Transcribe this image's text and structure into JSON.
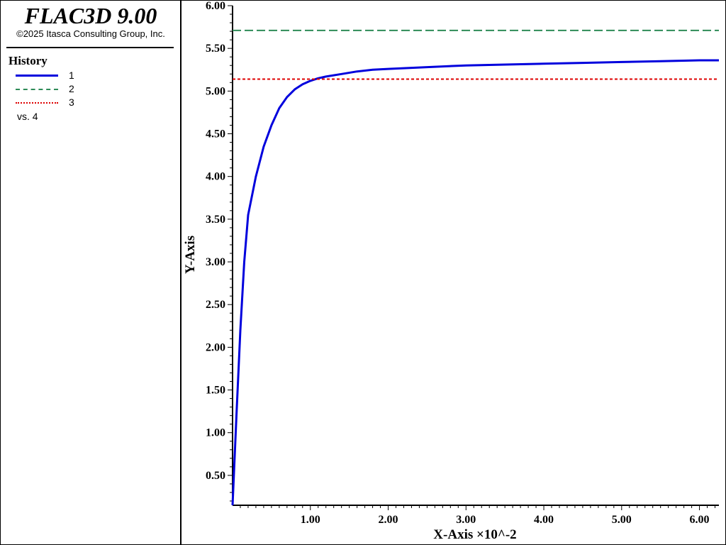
{
  "header": {
    "app_title": "FLAC3D 9.00",
    "copyright": "©2025 Itasca Consulting Group, Inc."
  },
  "legend": {
    "title": "History",
    "items": [
      {
        "label": "1",
        "color": "#0000dd",
        "style": "solid"
      },
      {
        "label": "2",
        "color": "#2e8b57",
        "style": "dashed"
      },
      {
        "label": "3",
        "color": "#dd0000",
        "style": "dotted"
      }
    ],
    "vs_label": "vs. 4"
  },
  "chart_data": {
    "type": "line",
    "xlabel": "X-Axis ×10^-2",
    "ylabel": "Y-Axis",
    "xlim": [
      0.0,
      6.25
    ],
    "ylim": [
      0.15,
      6.0
    ],
    "x_tick_values": [
      1.0,
      2.0,
      3.0,
      4.0,
      5.0,
      6.0
    ],
    "x_tick_labels": [
      "1.00",
      "2.00",
      "3.00",
      "4.00",
      "5.00",
      "6.00"
    ],
    "y_tick_values": [
      0.5,
      1.0,
      1.5,
      2.0,
      2.5,
      3.0,
      3.5,
      4.0,
      4.5,
      5.0,
      5.5,
      6.0
    ],
    "y_tick_labels": [
      "0.50",
      "1.00",
      "1.50",
      "2.00",
      "2.50",
      "3.00",
      "3.50",
      "4.00",
      "4.50",
      "5.00",
      "5.50",
      "6.00"
    ],
    "grid": false,
    "legend_placement": "left-panel",
    "series": [
      {
        "name": "1",
        "color": "#0000dd",
        "style": "solid",
        "x": [
          0.0,
          0.05,
          0.1,
          0.15,
          0.2,
          0.3,
          0.4,
          0.5,
          0.6,
          0.7,
          0.8,
          0.9,
          1.0,
          1.1,
          1.2,
          1.4,
          1.6,
          1.8,
          2.0,
          2.5,
          3.0,
          3.5,
          4.0,
          4.5,
          5.0,
          5.5,
          6.0,
          6.25
        ],
        "y": [
          0.15,
          1.2,
          2.2,
          3.0,
          3.55,
          4.0,
          4.35,
          4.6,
          4.8,
          4.93,
          5.02,
          5.08,
          5.12,
          5.15,
          5.17,
          5.2,
          5.23,
          5.25,
          5.26,
          5.28,
          5.3,
          5.31,
          5.32,
          5.33,
          5.34,
          5.35,
          5.36,
          5.36
        ]
      },
      {
        "name": "2",
        "color": "#2e8b57",
        "style": "dashed",
        "x": [
          0.0,
          6.25
        ],
        "y": [
          5.71,
          5.71
        ]
      },
      {
        "name": "3",
        "color": "#dd0000",
        "style": "dotted",
        "x": [
          0.0,
          6.25
        ],
        "y": [
          5.14,
          5.14
        ]
      }
    ]
  }
}
